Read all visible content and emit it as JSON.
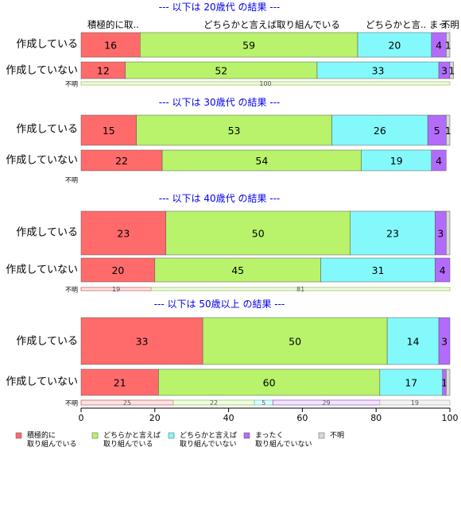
{
  "chart_data": {
    "type": "bar",
    "orientation": "horizontal",
    "stacked": "percent",
    "xlim": [
      0,
      100
    ],
    "x_ticks": [
      "0",
      "20",
      "40",
      "60",
      "80",
      "100"
    ],
    "column_labels": [
      "積極的に取..",
      "どちらかと言えば取り組んでいる",
      "どちらかと言.. まっ..",
      "不明"
    ],
    "legend": {
      "position": "bottom",
      "items": [
        {
          "label": "積極的に\n取り組んでいる",
          "color": "#FF6B6B"
        },
        {
          "label": "どちらかと言えば\n取り組んでいる",
          "color": "#B8F36B"
        },
        {
          "label": "どちらかと言えば\n取り組んでいない",
          "color": "#84F9FB"
        },
        {
          "label": "まったく\n取り組んでいない",
          "color": "#B36BFC"
        },
        {
          "label": "不明",
          "color": "#D9D9D9"
        }
      ]
    },
    "panels": [
      {
        "title": "--- 以下は 20歳代 の結果 ---",
        "categories": [
          "作成している",
          "作成していない",
          "不明"
        ],
        "rows": [
          {
            "label": "作成している",
            "values": [
              16,
              59,
              20,
              4,
              1
            ],
            "labels": [
              "16",
              "59",
              "20",
              "4",
              "1"
            ]
          },
          {
            "label": "作成していない",
            "values": [
              12,
              52,
              33,
              3,
              1
            ],
            "labels": [
              "12",
              "52",
              "33",
              "3",
              "1"
            ]
          },
          {
            "label": "不明",
            "values": [
              0,
              100,
              0,
              0,
              0
            ],
            "labels": [
              "",
              "100",
              "",
              "",
              ""
            ]
          }
        ]
      },
      {
        "title": "--- 以下は 30歳代 の結果 ---",
        "categories": [
          "作成している",
          "作成していない",
          "不明"
        ],
        "rows": [
          {
            "label": "作成している",
            "values": [
              15,
              53,
              26,
              5,
              1
            ],
            "labels": [
              "15",
              "53",
              "26",
              "5",
              "1"
            ]
          },
          {
            "label": "作成していない",
            "values": [
              22,
              54,
              19,
              4,
              0
            ],
            "labels": [
              "22",
              "54",
              "19",
              "4",
              ""
            ]
          },
          {
            "label": "不明",
            "values": [
              0,
              0,
              0,
              0,
              0
            ],
            "labels": [
              "",
              "",
              "",
              "",
              ""
            ]
          }
        ]
      },
      {
        "title": "--- 以下は 40歳代 の結果 ---",
        "categories": [
          "作成している",
          "作成していない",
          "不明"
        ],
        "rows": [
          {
            "label": "作成している",
            "values": [
              23,
              50,
              23,
              3,
              1
            ],
            "labels": [
              "23",
              "50",
              "23",
              "3",
              ""
            ]
          },
          {
            "label": "作成していない",
            "values": [
              20,
              45,
              31,
              4,
              0
            ],
            "labels": [
              "20",
              "45",
              "31",
              "4",
              ""
            ]
          },
          {
            "label": "不明",
            "values": [
              19,
              81,
              0,
              0,
              0
            ],
            "labels": [
              "19",
              "81",
              "",
              "",
              ""
            ]
          }
        ]
      },
      {
        "title": "--- 以下は 50歳以上 の結果 ---",
        "categories": [
          "作成している",
          "作成していない",
          "不明"
        ],
        "rows": [
          {
            "label": "作成している",
            "values": [
              33,
              50,
              14,
              3,
              0
            ],
            "labels": [
              "33",
              "50",
              "14",
              "3",
              ""
            ]
          },
          {
            "label": "作成していない",
            "values": [
              21,
              60,
              17,
              1,
              1
            ],
            "labels": [
              "21",
              "60",
              "17",
              "1",
              ""
            ]
          },
          {
            "label": "不明",
            "values": [
              25,
              22,
              5,
              29,
              19
            ],
            "labels": [
              "25",
              "22",
              "5",
              "29",
              "19"
            ]
          }
        ]
      }
    ]
  }
}
